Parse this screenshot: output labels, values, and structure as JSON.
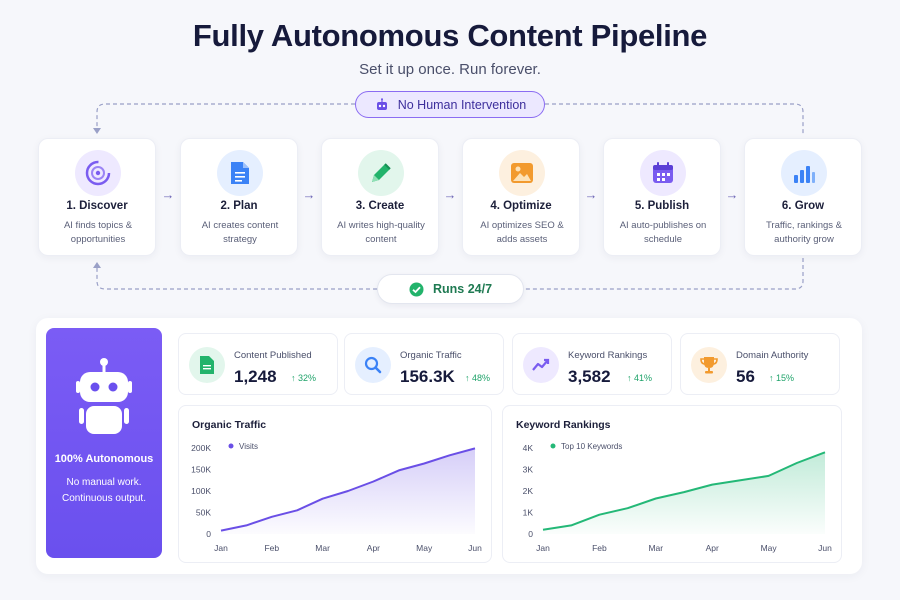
{
  "header": {
    "title": "Fully Autonomous Content Pipeline",
    "subtitle": "Set it up once. Run forever."
  },
  "pills": {
    "top_label": "No Human Intervention",
    "top_icon": "robot-icon",
    "bottom_label": "Runs 24/7",
    "bottom_icon": "check-circle-icon"
  },
  "steps": [
    {
      "title": "1. Discover",
      "desc": "AI finds topics & opportunities",
      "icon": "target-icon",
      "color": "#7a5cf0",
      "bg": "#eee9ff"
    },
    {
      "title": "2. Plan",
      "desc": "AI creates content strategy",
      "icon": "document-icon",
      "color": "#3b82f6",
      "bg": "#e5efff"
    },
    {
      "title": "3. Create",
      "desc": "AI writes high-quality content",
      "icon": "pencil-icon",
      "color": "#22b36b",
      "bg": "#e2f6ec"
    },
    {
      "title": "4. Optimize",
      "desc": "AI optimizes SEO & adds assets",
      "icon": "image-icon",
      "color": "#f29a2e",
      "bg": "#fdf0df"
    },
    {
      "title": "5. Publish",
      "desc": "AI auto-publishes on schedule",
      "icon": "calendar-icon",
      "color": "#7a5cf0",
      "bg": "#eee9ff"
    },
    {
      "title": "6. Grow",
      "desc": "Traffic, rankings & authority grow",
      "icon": "bar-chart-icon",
      "color": "#3b82f6",
      "bg": "#e5efff"
    }
  ],
  "autonomous": {
    "title": "100% Autonomous",
    "line1": "No manual work.",
    "line2": "Continuous output.",
    "icon": "robot-icon"
  },
  "stats": [
    {
      "label": "Content Published",
      "value": "1,248",
      "delta": "32%",
      "icon": "document-icon",
      "color": "#22b36b",
      "bg": "#e2f6ec"
    },
    {
      "label": "Organic Traffic",
      "value": "156.3K",
      "delta": "48%",
      "icon": "search-icon",
      "color": "#3b82f6",
      "bg": "#e5efff"
    },
    {
      "label": "Keyword Rankings",
      "value": "3,582",
      "delta": "41%",
      "icon": "trend-icon",
      "color": "#7a5cf0",
      "bg": "#eee9ff"
    },
    {
      "label": "Domain Authority",
      "value": "56",
      "delta": "15%",
      "icon": "trophy-icon",
      "color": "#f29a2e",
      "bg": "#fdf0df"
    }
  ],
  "chart_data": [
    {
      "type": "area",
      "title": "Organic Traffic",
      "categories": [
        "Jan",
        "Feb",
        "Mar",
        "Apr",
        "May",
        "Jun"
      ],
      "x": [
        0,
        0.5,
        1,
        1.5,
        2,
        2.5,
        3,
        3.5,
        4,
        4.5,
        5
      ],
      "series": [
        {
          "name": "Visits",
          "values": [
            8000,
            20000,
            40000,
            55000,
            82000,
            100000,
            122000,
            148000,
            164000,
            183000,
            199000
          ]
        }
      ],
      "yticks": [
        "0",
        "50K",
        "100K",
        "150K",
        "200K"
      ],
      "ylim": [
        0,
        200000
      ],
      "color": "#6a4fe6",
      "grid": false,
      "legend": "top-left"
    },
    {
      "type": "area",
      "title": "Keyword Rankings",
      "categories": [
        "Jan",
        "Feb",
        "Mar",
        "Apr",
        "May",
        "Jun"
      ],
      "x": [
        0,
        0.5,
        1,
        1.5,
        2,
        2.5,
        3,
        3.5,
        4,
        4.5,
        5
      ],
      "series": [
        {
          "name": "Top 10 Keywords",
          "values": [
            200,
            400,
            900,
            1200,
            1650,
            1950,
            2300,
            2500,
            2700,
            3300,
            3800
          ]
        }
      ],
      "yticks": [
        "0",
        "1K",
        "2K",
        "3K",
        "4K"
      ],
      "ylim": [
        0,
        4000
      ],
      "color": "#24b877",
      "grid": false,
      "legend": "top-left"
    }
  ]
}
